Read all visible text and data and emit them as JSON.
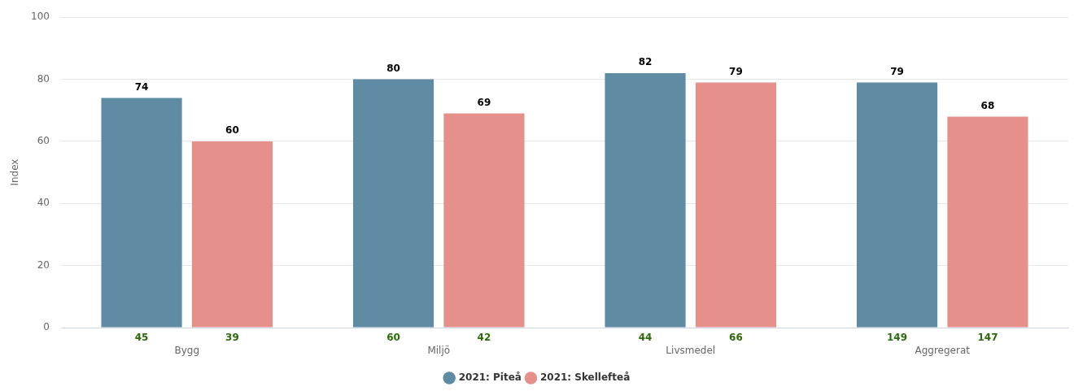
{
  "chart_data": {
    "type": "bar",
    "categories": [
      "Bygg",
      "Miljö",
      "Livsmedel",
      "Aggregerat"
    ],
    "series": [
      {
        "name": "2021: Piteå",
        "color": "#5f8ba3",
        "values": [
          74,
          80,
          82,
          79
        ]
      },
      {
        "name": "2021: Skellefteå",
        "color": "#e5908a",
        "values": [
          60,
          69,
          79,
          68
        ]
      }
    ],
    "ylabel": "Index",
    "ylim": [
      0,
      100
    ],
    "yticks": [
      0,
      20,
      40,
      60,
      80,
      100
    ],
    "grid": "y",
    "legend": "bottom",
    "data_labels": true,
    "annotations": [
      "45",
      "39",
      "60",
      "42",
      "44",
      "66",
      "149",
      "147"
    ]
  }
}
